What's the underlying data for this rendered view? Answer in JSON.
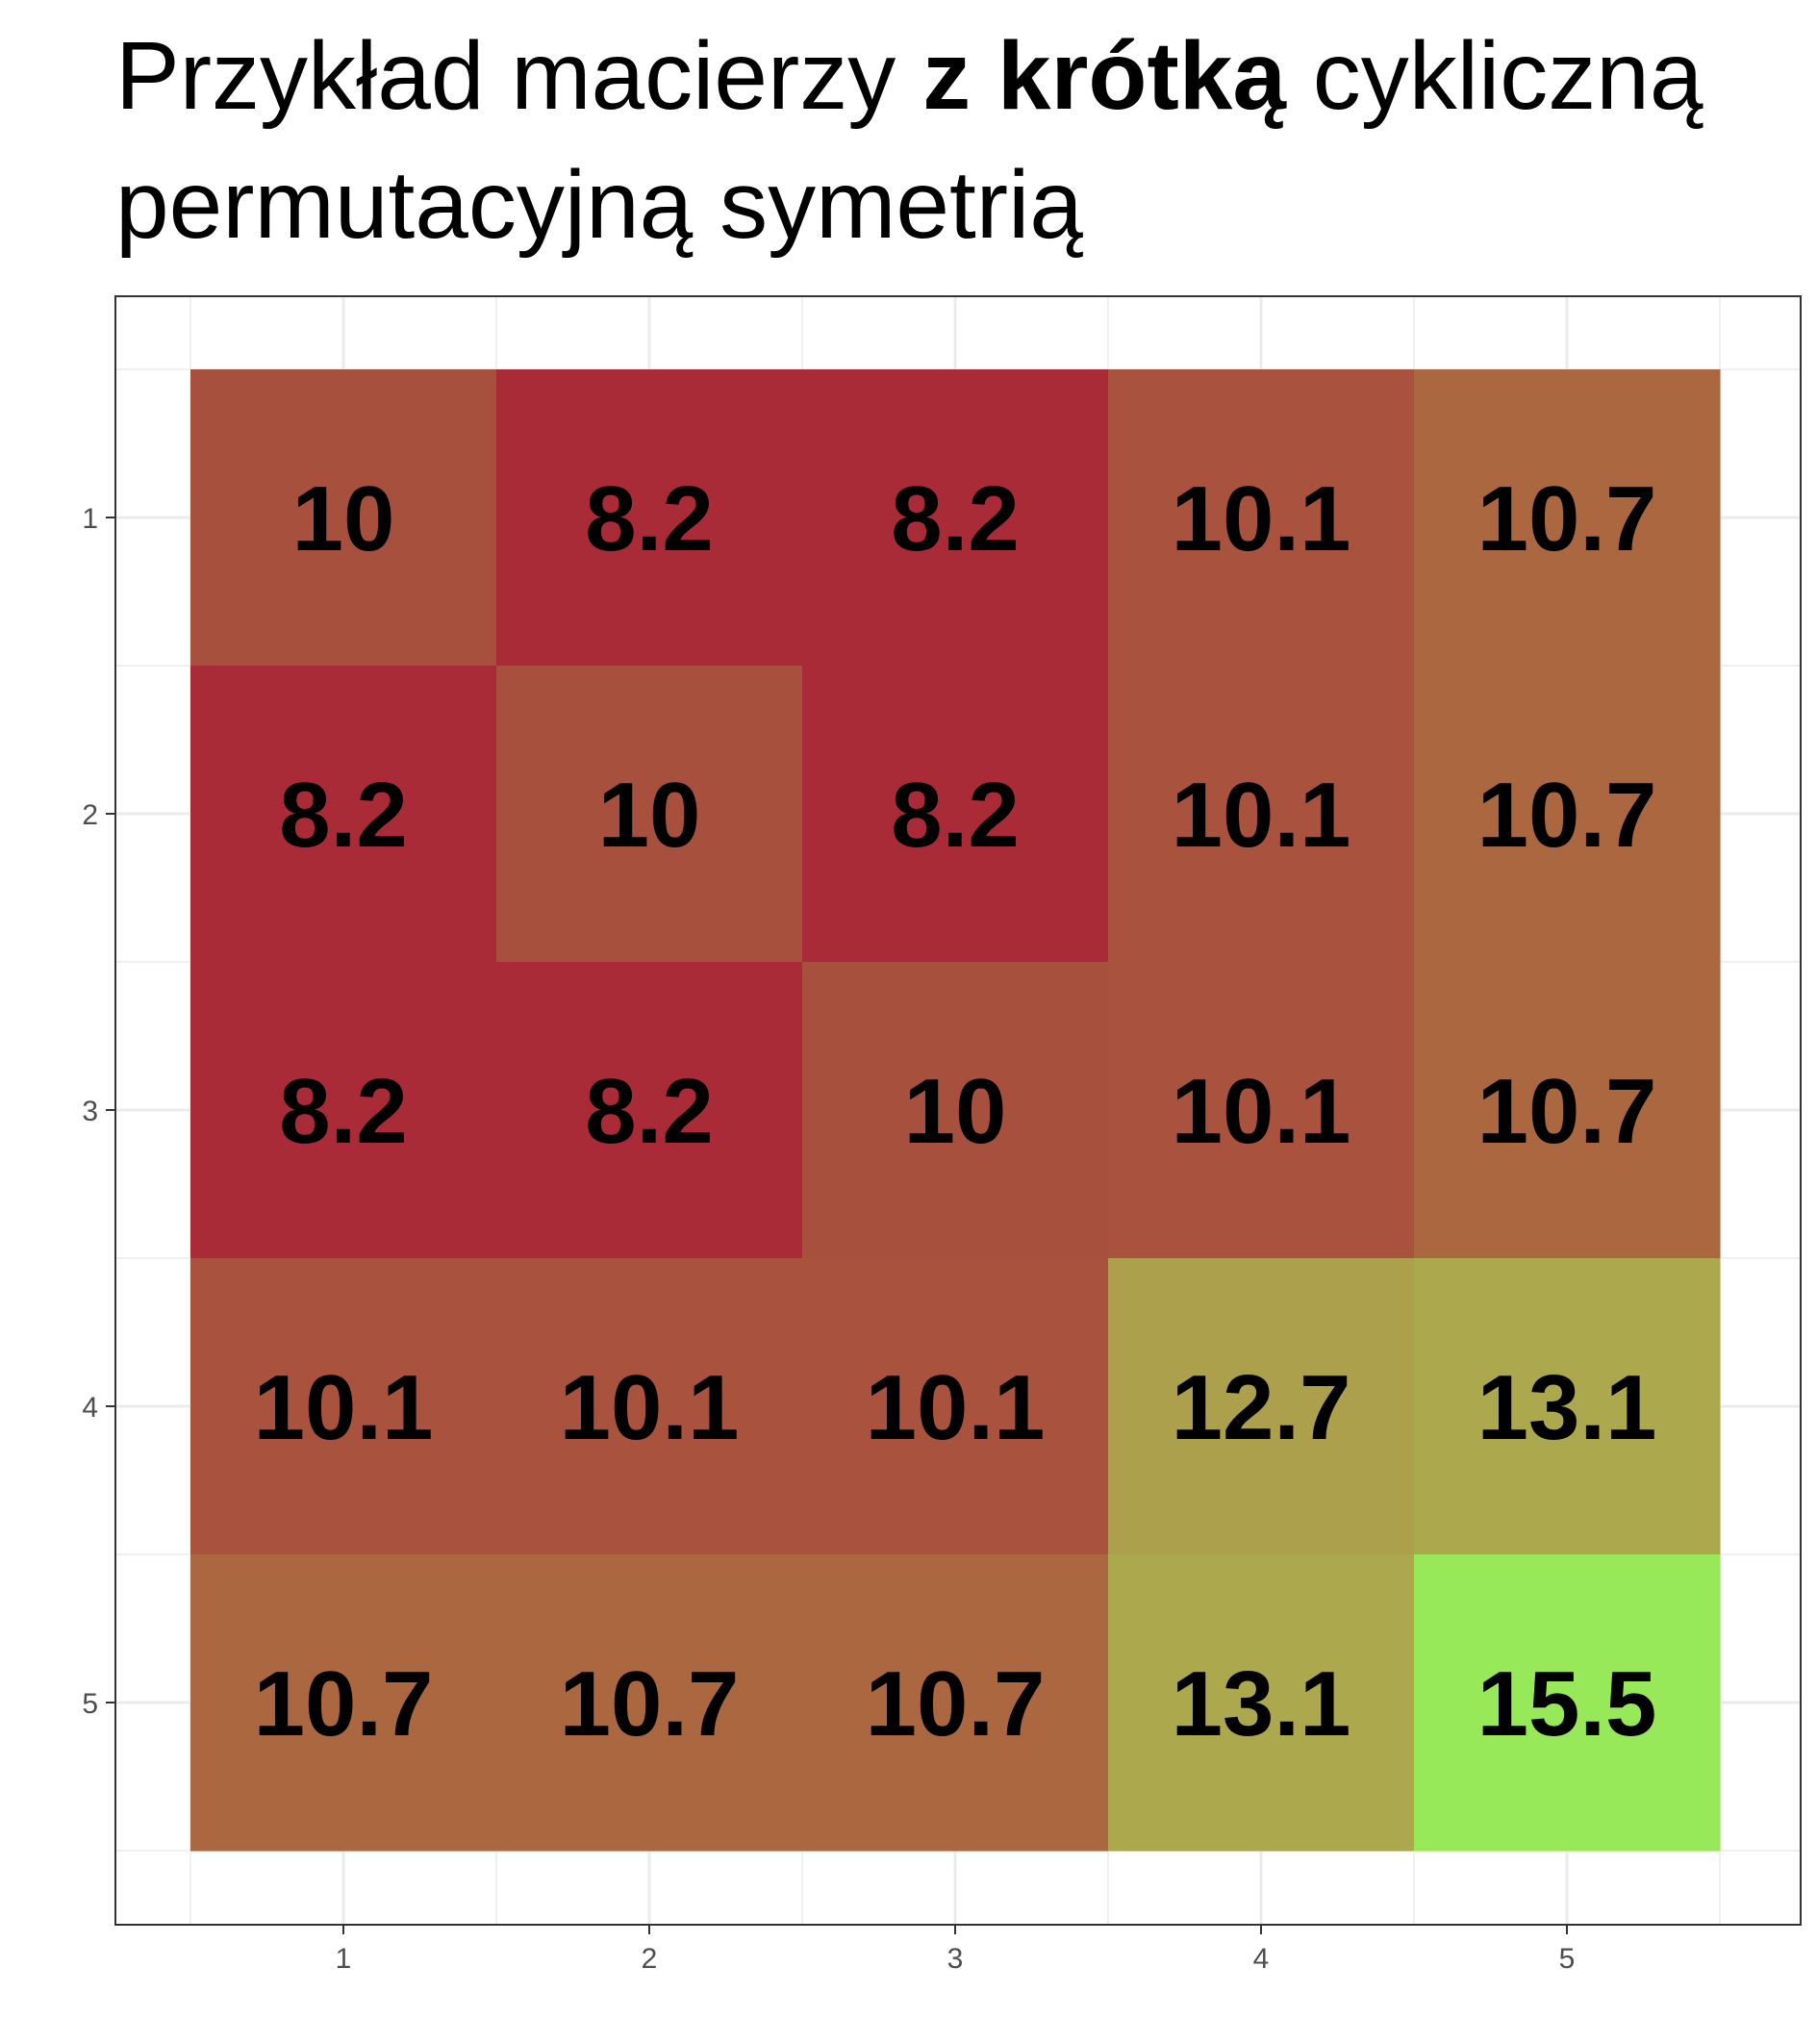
{
  "chart_data": {
    "type": "heatmap",
    "title": {
      "before": "Przykład macierzy ",
      "bold": "z krótką",
      "after": " cykliczną permutacyjną symetrią"
    },
    "xlabel": "",
    "ylabel": "",
    "x_categories": [
      "1",
      "2",
      "3",
      "4",
      "5"
    ],
    "y_categories": [
      "1",
      "2",
      "3",
      "4",
      "5"
    ],
    "x_ticks": [
      "1",
      "2",
      "3",
      "4",
      "5"
    ],
    "y_ticks": [
      "1",
      "2",
      "3",
      "4",
      "5"
    ],
    "values": [
      [
        10,
        8.2,
        8.2,
        10.1,
        10.7
      ],
      [
        8.2,
        10,
        8.2,
        10.1,
        10.7
      ],
      [
        8.2,
        8.2,
        10,
        10.1,
        10.7
      ],
      [
        10.1,
        10.1,
        10.1,
        12.7,
        13.1
      ],
      [
        10.7,
        10.7,
        10.7,
        13.1,
        15.5
      ]
    ],
    "cell_labels": [
      [
        "10",
        "8.2",
        "8.2",
        "10.1",
        "10.7"
      ],
      [
        "8.2",
        "10",
        "8.2",
        "10.1",
        "10.7"
      ],
      [
        "8.2",
        "8.2",
        "10",
        "10.1",
        "10.7"
      ],
      [
        "10.1",
        "10.1",
        "10.1",
        "12.7",
        "13.1"
      ],
      [
        "10.7",
        "10.7",
        "10.7",
        "13.1",
        "15.5"
      ]
    ],
    "color_scale": {
      "min_value": 8.2,
      "max_value": 15.5,
      "low_color": "#aa2b38",
      "high_color": "#98e95a"
    },
    "cell_colors": {
      "8.2": "#aa2b38",
      "10": "#a8503e",
      "10.1": "#a9533f",
      "10.7": "#ab6740",
      "12.7": "#aca04d",
      "13.1": "#aba84d",
      "15.5": "#98e95a"
    },
    "grid": true,
    "legend": "none",
    "y_axis_reversed": true
  }
}
